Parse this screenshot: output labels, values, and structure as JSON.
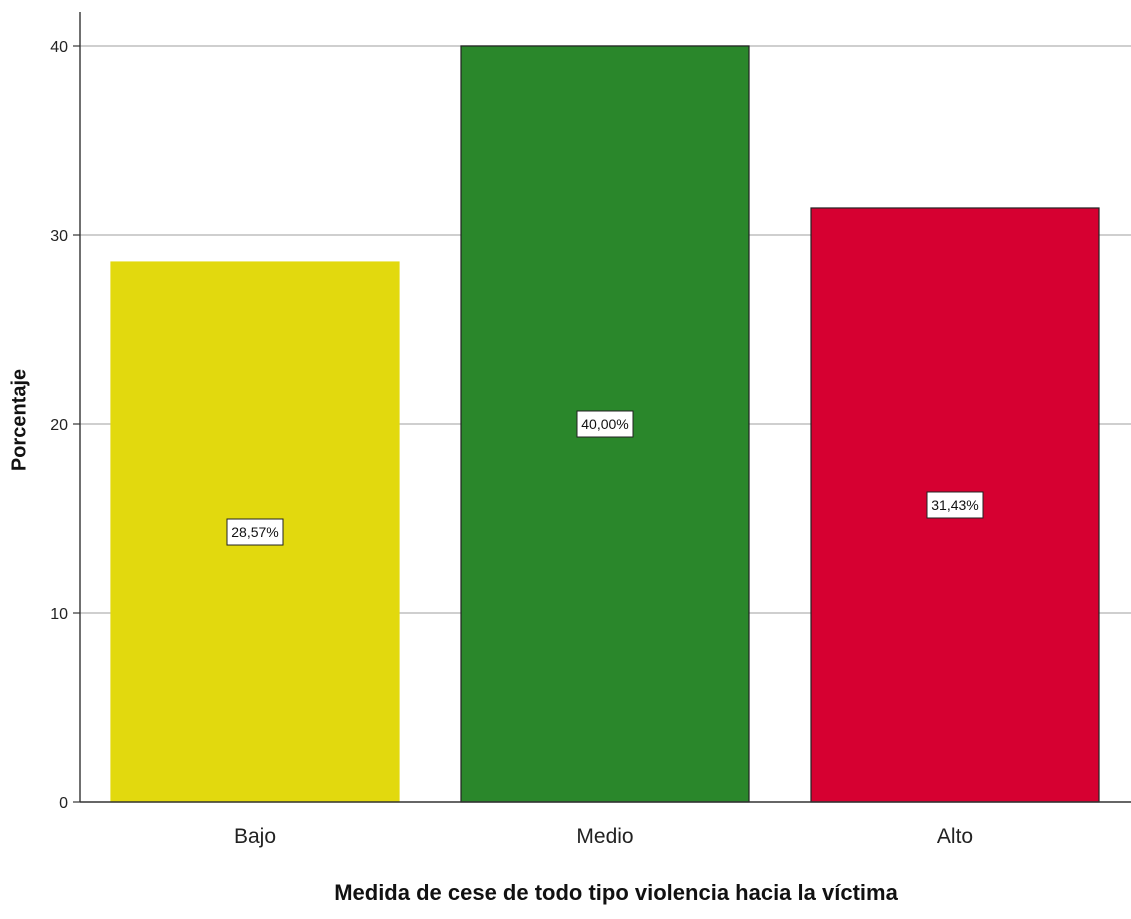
{
  "chart_data": {
    "type": "bar",
    "title": "",
    "xlabel": "Medida de cese de todo tipo violencia hacia la víctima",
    "ylabel": "Porcentaje",
    "categories": [
      "Bajo",
      "Medio",
      "Alto"
    ],
    "values": [
      28.57,
      40.0,
      31.43
    ],
    "data_labels": [
      "28,57%",
      "40,00%",
      "31,43%"
    ],
    "colors": [
      "#e2d90e",
      "#2a872b",
      "#d60031"
    ],
    "ylim": [
      0,
      40
    ],
    "yticks": [
      "0",
      "10",
      "20",
      "30",
      "40"
    ],
    "grid": true,
    "legend": "none"
  }
}
